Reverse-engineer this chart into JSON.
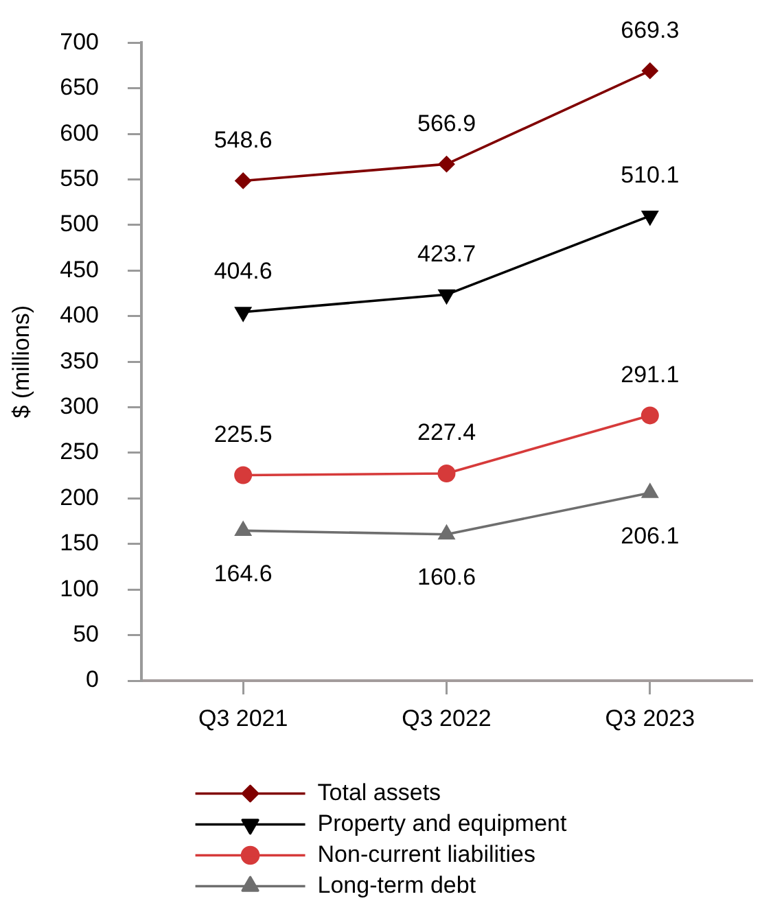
{
  "chart_data": {
    "type": "line",
    "categories": [
      "Q3 2021",
      "Q3 2022",
      "Q3 2023"
    ],
    "series": [
      {
        "name": "Total assets",
        "color": "#800000",
        "marker": "diamond",
        "values": [
          548.6,
          566.9,
          669.3
        ]
      },
      {
        "name": "Property and equipment",
        "color": "#000000",
        "marker": "triangle-down",
        "values": [
          404.6,
          423.7,
          510.1
        ]
      },
      {
        "name": "Non-current liabilities",
        "color": "#d63a3a",
        "marker": "circle",
        "values": [
          225.5,
          227.4,
          291.1
        ]
      },
      {
        "name": "Long-term debt",
        "color": "#6e6e6e",
        "marker": "triangle",
        "values": [
          164.6,
          160.6,
          206.1
        ]
      }
    ],
    "ylabel": "$ (millions)",
    "ylim": [
      0,
      700
    ],
    "yticks": [
      0,
      50,
      100,
      150,
      200,
      250,
      300,
      350,
      400,
      450,
      500,
      550,
      600,
      650,
      700
    ],
    "data_labels": true,
    "grid": false,
    "legend": "bottom"
  }
}
